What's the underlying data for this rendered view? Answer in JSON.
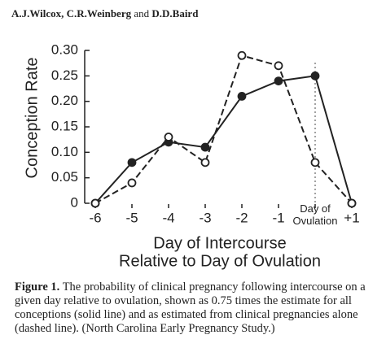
{
  "authors": [
    "A.J.Wilcox, C.R.Weinberg",
    "and",
    "D.D.Baird"
  ],
  "chart_data": {
    "type": "line",
    "ylabel": "Conception Rate",
    "xlabel": [
      "Day of Intercourse",
      "Relative to Day of Ovulation"
    ],
    "x": [
      -6,
      -5,
      -4,
      -3,
      -2,
      -1,
      0,
      1
    ],
    "series": [
      {
        "color": "#222222",
        "style": "solid",
        "marker": "filled",
        "values": [
          0,
          0.08,
          0.12,
          0.11,
          0.21,
          0.24,
          0.25,
          0
        ]
      },
      {
        "color": "#222222",
        "style": "dashed",
        "marker": "open",
        "values": [
          0,
          0.04,
          0.13,
          0.08,
          0.29,
          0.27,
          0.08,
          0
        ]
      }
    ],
    "xlim": [
      -6,
      1
    ],
    "xticks": [
      -6,
      -5,
      -4,
      -3,
      -2,
      -1,
      {
        "value": 0,
        "label": "Day of Ovulation"
      },
      {
        "value": 1,
        "label": "+1"
      }
    ],
    "ylim": [
      0,
      0.3
    ],
    "yticks": [
      0,
      0.05,
      {
        "value": 0.1,
        "label": "0.10"
      },
      0.15,
      {
        "value": 0.2,
        "label": "0.20"
      },
      0.25,
      {
        "value": 0.3,
        "label": "0.30"
      }
    ],
    "vline": 0,
    "grid": false
  },
  "caption": {
    "label": "Figure 1.",
    "text": "The probability of clinical pregnancy following intercourse on a given day relative to ovulation, shown as 0.75 times the estimate for all conceptions (solid line) and as estimated from clinical pregnancies alone (dashed line). (North Carolina Early Pregnancy Study.)"
  }
}
